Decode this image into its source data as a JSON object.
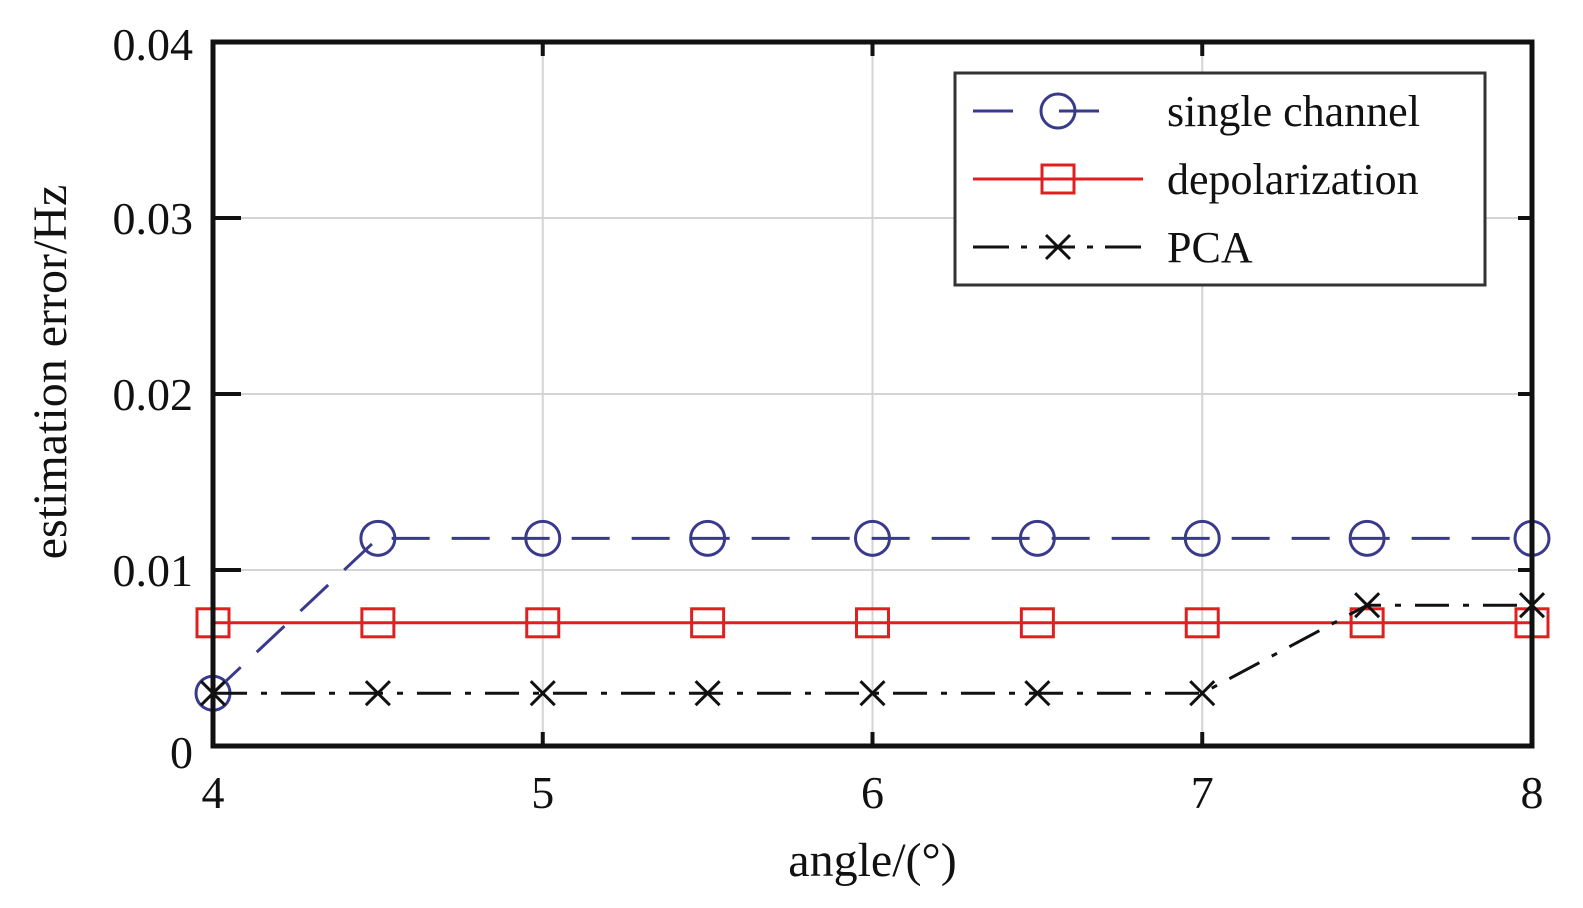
{
  "chart_data": {
    "type": "line",
    "title": "",
    "xlabel": "angle/(°)",
    "ylabel": "estimation error/Hz",
    "xlim": [
      4,
      8
    ],
    "ylim": [
      0,
      0.04
    ],
    "xticks": [
      4,
      5,
      6,
      7,
      8
    ],
    "xtick_labels": [
      "4",
      "5",
      "6",
      "7",
      "8"
    ],
    "yticks": [
      0,
      0.01,
      0.02,
      0.03,
      0.04
    ],
    "ytick_labels": [
      "0",
      "0.01",
      "0.02",
      "0.03",
      "0.04"
    ],
    "grid": true,
    "legend_position": "top-right",
    "x": [
      4,
      4.5,
      5,
      5.5,
      6,
      6.5,
      7,
      7.5,
      8
    ],
    "series": [
      {
        "name": "single channel",
        "values": [
          0.003,
          0.0118,
          0.0118,
          0.0118,
          0.0118,
          0.0118,
          0.0118,
          0.0118,
          0.0118
        ],
        "color": "#3a3a8c",
        "line_style": "dashed",
        "marker": "circle"
      },
      {
        "name": "depolarization",
        "values": [
          0.007,
          0.007,
          0.007,
          0.007,
          0.007,
          0.007,
          0.007,
          0.007,
          0.007
        ],
        "color": "#e02020",
        "line_style": "solid",
        "marker": "square"
      },
      {
        "name": "PCA",
        "values": [
          0.003,
          0.003,
          0.003,
          0.003,
          0.003,
          0.003,
          0.003,
          0.008,
          0.008
        ],
        "color": "#111111",
        "line_style": "dash-dot",
        "marker": "x"
      }
    ]
  }
}
